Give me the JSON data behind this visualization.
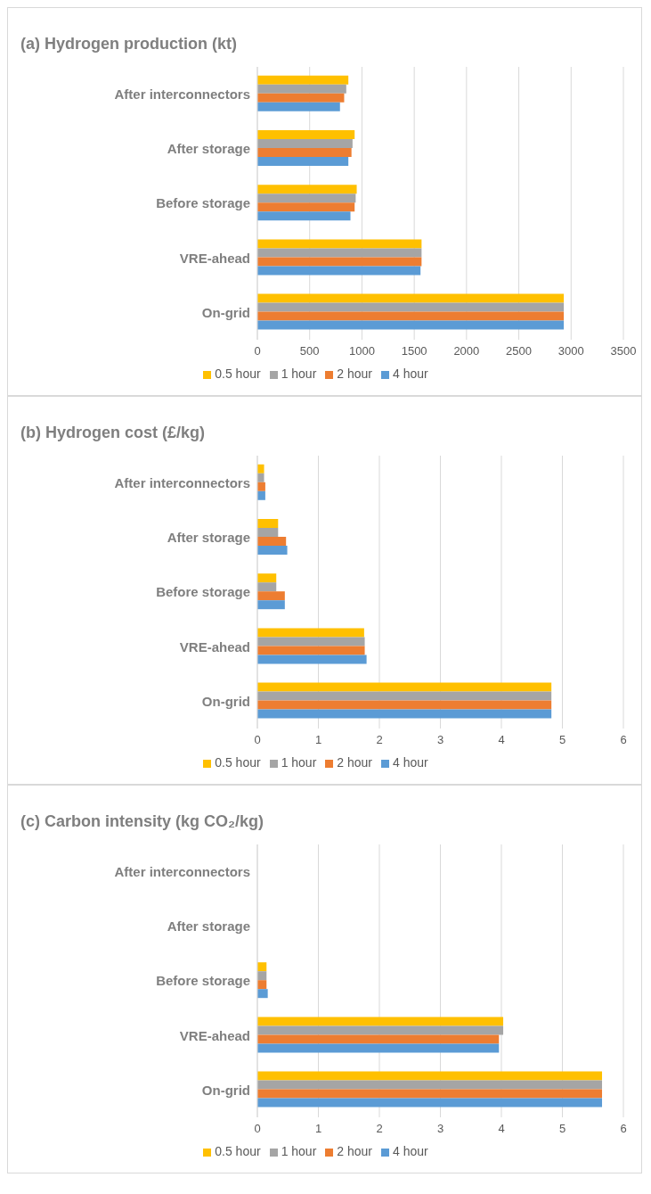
{
  "chart_data": [
    {
      "type": "bar",
      "orientation": "horizontal",
      "title": "(a) Hydrogen production (kt)",
      "categories": [
        "After interconnectors",
        "After storage",
        "Before storage",
        "VRE-ahead",
        "On-grid"
      ],
      "series": [
        {
          "name": "0.5 hour",
          "color": "#ffc000",
          "values": [
            870,
            930,
            950,
            1570,
            2930
          ]
        },
        {
          "name": "1 hour",
          "color": "#a5a5a5",
          "values": [
            850,
            910,
            940,
            1570,
            2930
          ]
        },
        {
          "name": "2 hour",
          "color": "#ed7d31",
          "values": [
            830,
            900,
            930,
            1570,
            2930
          ]
        },
        {
          "name": "4 hour",
          "color": "#5b9bd5",
          "values": [
            790,
            870,
            890,
            1560,
            2930
          ]
        }
      ],
      "xlim": [
        0,
        3500
      ],
      "xticks": [
        0,
        500,
        1000,
        1500,
        2000,
        2500,
        3000,
        3500
      ],
      "grid": "x",
      "legend": "bottom"
    },
    {
      "type": "bar",
      "orientation": "horizontal",
      "title": "(b) Hydrogen cost (£/kg)",
      "categories": [
        "After interconnectors",
        "After storage",
        "Before storage",
        "VRE-ahead",
        "On-grid"
      ],
      "series": [
        {
          "name": "0.5 hour",
          "color": "#ffc000",
          "values": [
            0.11,
            0.34,
            0.31,
            1.75,
            4.82
          ]
        },
        {
          "name": "1 hour",
          "color": "#a5a5a5",
          "values": [
            0.11,
            0.34,
            0.31,
            1.76,
            4.82
          ]
        },
        {
          "name": "2 hour",
          "color": "#ed7d31",
          "values": [
            0.13,
            0.47,
            0.45,
            1.76,
            4.82
          ]
        },
        {
          "name": "4 hour",
          "color": "#5b9bd5",
          "values": [
            0.13,
            0.49,
            0.45,
            1.79,
            4.82
          ]
        }
      ],
      "xlim": [
        0,
        6
      ],
      "xticks": [
        0,
        1,
        2,
        3,
        4,
        5,
        6
      ],
      "grid": "x",
      "legend": "bottom"
    },
    {
      "type": "bar",
      "orientation": "horizontal",
      "title": "(c) Carbon intensity (kg CO₂/kg)",
      "categories": [
        "After interconnectors",
        "After storage",
        "Before storage",
        "VRE-ahead",
        "On-grid"
      ],
      "series": [
        {
          "name": "0.5 hour",
          "color": "#ffc000",
          "values": [
            0,
            0,
            0.15,
            4.03,
            5.65
          ]
        },
        {
          "name": "1 hour",
          "color": "#a5a5a5",
          "values": [
            0,
            0,
            0.15,
            4.03,
            5.65
          ]
        },
        {
          "name": "2 hour",
          "color": "#ed7d31",
          "values": [
            0,
            0,
            0.15,
            3.96,
            5.65
          ]
        },
        {
          "name": "4 hour",
          "color": "#5b9bd5",
          "values": [
            0,
            0,
            0.17,
            3.96,
            5.65
          ]
        }
      ],
      "xlim": [
        0,
        6
      ],
      "xticks": [
        0,
        1,
        2,
        3,
        4,
        5,
        6
      ],
      "grid": "x",
      "legend": "bottom"
    }
  ]
}
